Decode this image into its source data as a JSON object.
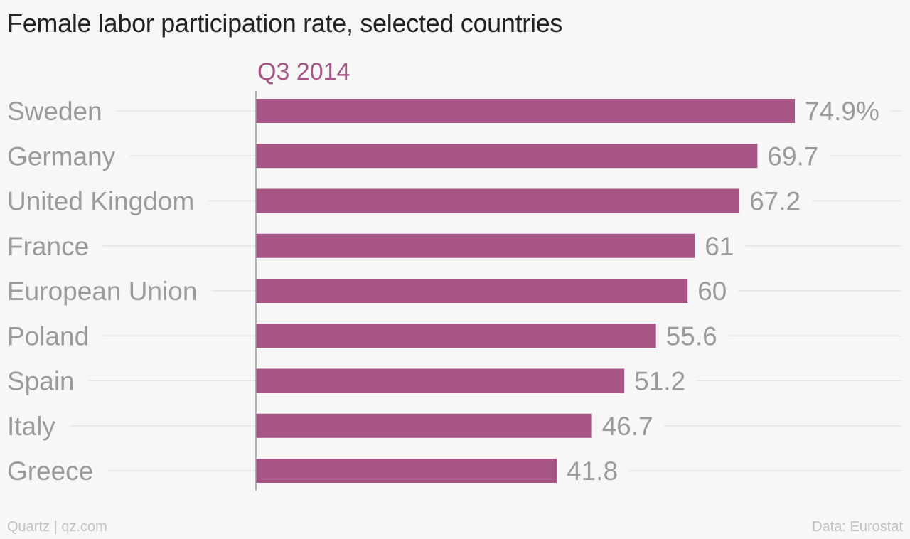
{
  "chart_data": {
    "type": "bar",
    "orientation": "horizontal",
    "title": "Female labor participation rate, selected countries",
    "series": [
      {
        "name": "Q3 2014",
        "color": "#a65585",
        "values": [
          74.9,
          69.7,
          67.2,
          61,
          60,
          55.6,
          51.2,
          46.7,
          41.8
        ],
        "value_labels": [
          "74.9%",
          "69.7",
          "67.2",
          "61",
          "60",
          "55.6",
          "51.2",
          "46.7",
          "41.8"
        ]
      }
    ],
    "categories": [
      "Sweden",
      "Germany",
      "United Kingdom",
      "France",
      "European Union",
      "Poland",
      "Spain",
      "Italy",
      "Greece"
    ],
    "xlim": [
      0,
      74.9
    ],
    "grid": true,
    "legend": "top"
  },
  "footer": {
    "credit": "Quartz | qz.com",
    "source": "Data: Eurostat"
  },
  "colors": {
    "bar": "#a65585",
    "series_label": "#a65585",
    "category_text": "#9b9b9b",
    "value_text": "#9b9b9b",
    "grid": "#e6e6e6",
    "axis": "#9a9a9a"
  }
}
